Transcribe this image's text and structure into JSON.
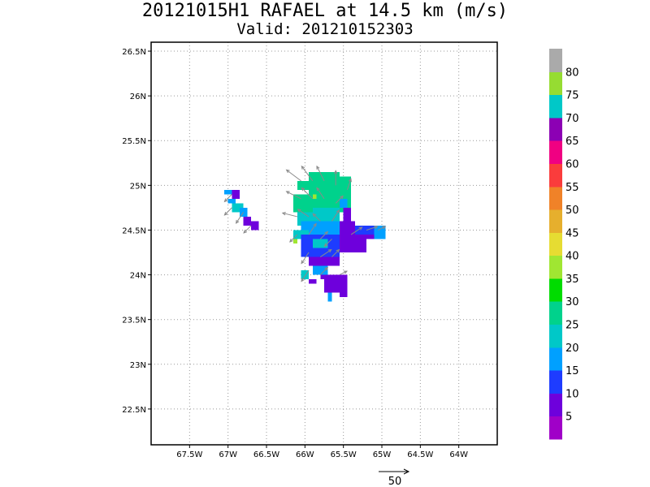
{
  "header": {
    "title": "20121015H1 RAFAEL at 14.5 km (m/s)",
    "subtitle": "Valid: 201210152303"
  },
  "chart_data": {
    "type": "heatmap",
    "title": "20121015H1 RAFAEL at 14.5 km (m/s)",
    "subtitle": "Valid: 201210152303",
    "xlabel": "",
    "ylabel": "",
    "xlim": [
      -68.0,
      -63.5
    ],
    "ylim": [
      22.1,
      26.6
    ],
    "xticks": [
      {
        "value": -67.5,
        "label": "67.5W"
      },
      {
        "value": -67.0,
        "label": "67W"
      },
      {
        "value": -66.5,
        "label": "66.5W"
      },
      {
        "value": -66.0,
        "label": "66W"
      },
      {
        "value": -65.5,
        "label": "65.5W"
      },
      {
        "value": -65.0,
        "label": "65W"
      },
      {
        "value": -64.5,
        "label": "64.5W"
      },
      {
        "value": -64.0,
        "label": "64W"
      }
    ],
    "yticks": [
      {
        "value": 22.5,
        "label": "22.5N"
      },
      {
        "value": 23.0,
        "label": "23N"
      },
      {
        "value": 23.5,
        "label": "23.5N"
      },
      {
        "value": 24.0,
        "label": "24N"
      },
      {
        "value": 24.5,
        "label": "24.5N"
      },
      {
        "value": 25.0,
        "label": "25N"
      },
      {
        "value": 25.5,
        "label": "25.5N"
      },
      {
        "value": 26.0,
        "label": "26N"
      },
      {
        "value": 26.5,
        "label": "26.5N"
      }
    ],
    "grid": true,
    "colorbar": {
      "labels": [
        "5",
        "10",
        "15",
        "20",
        "25",
        "30",
        "35",
        "40",
        "45",
        "50",
        "55",
        "60",
        "65",
        "70",
        "75",
        "80"
      ],
      "colors": [
        "#a000c8",
        "#6e00dc",
        "#1e3cff",
        "#00a0ff",
        "#00c8c8",
        "#00d28c",
        "#00dc00",
        "#a0e632",
        "#e6dc32",
        "#e6af2d",
        "#f08228",
        "#fa3c3c",
        "#f00082",
        "#8c00b4",
        "#00c8c8",
        "#96dc32",
        "#aaaaaa"
      ]
    },
    "cell_size_deg": [
      0.05,
      0.05
    ],
    "cells": [
      {
        "lon": -67.05,
        "lat": 24.9,
        "lon2": -66.9,
        "lat2": 24.95,
        "v": 15
      },
      {
        "lon": -66.95,
        "lat": 24.85,
        "lon2": -66.85,
        "lat2": 24.95,
        "v": 5
      },
      {
        "lon": -67.0,
        "lat": 24.8,
        "lon2": -66.9,
        "lat2": 24.85,
        "v": 15
      },
      {
        "lon": -66.95,
        "lat": 24.7,
        "lon2": -66.8,
        "lat2": 24.8,
        "v": 20
      },
      {
        "lon": -66.85,
        "lat": 24.65,
        "lon2": -66.75,
        "lat2": 24.75,
        "v": 15
      },
      {
        "lon": -66.8,
        "lat": 24.55,
        "lon2": -66.7,
        "lat2": 24.65,
        "v": 5
      },
      {
        "lon": -66.7,
        "lat": 24.5,
        "lon2": -66.6,
        "lat2": 24.6,
        "v": 5
      },
      {
        "lon": -66.1,
        "lat": 24.95,
        "lon2": -65.6,
        "lat2": 25.05,
        "v": 25
      },
      {
        "lon": -65.95,
        "lat": 25.05,
        "lon2": -65.55,
        "lat2": 25.15,
        "v": 25
      },
      {
        "lon": -65.95,
        "lat": 24.7,
        "lon2": -65.4,
        "lat2": 24.95,
        "v": 25
      },
      {
        "lon": -65.6,
        "lat": 24.95,
        "lon2": -65.4,
        "lat2": 25.1,
        "v": 25
      },
      {
        "lon": -66.15,
        "lat": 24.7,
        "lon2": -65.95,
        "lat2": 24.9,
        "v": 25
      },
      {
        "lon": -65.9,
        "lat": 24.85,
        "lon2": -65.85,
        "lat2": 24.9,
        "v": 35
      },
      {
        "lon": -65.9,
        "lat": 24.6,
        "lon2": -65.55,
        "lat2": 24.75,
        "v": 20
      },
      {
        "lon": -66.1,
        "lat": 24.55,
        "lon2": -65.9,
        "lat2": 24.7,
        "v": 20
      },
      {
        "lon": -65.55,
        "lat": 24.75,
        "lon2": -65.45,
        "lat2": 24.85,
        "v": 15
      },
      {
        "lon": -66.05,
        "lat": 24.45,
        "lon2": -65.5,
        "lat2": 24.6,
        "v": 15
      },
      {
        "lon": -66.15,
        "lat": 24.4,
        "lon2": -65.95,
        "lat2": 24.5,
        "v": 20
      },
      {
        "lon": -66.15,
        "lat": 24.35,
        "lon2": -66.1,
        "lat2": 24.4,
        "v": 35
      },
      {
        "lon": -66.05,
        "lat": 24.2,
        "lon2": -65.55,
        "lat2": 24.45,
        "v": 10
      },
      {
        "lon": -65.9,
        "lat": 24.3,
        "lon2": -65.7,
        "lat2": 24.4,
        "v": 20
      },
      {
        "lon": -65.95,
        "lat": 24.1,
        "lon2": -65.55,
        "lat2": 24.2,
        "v": 5
      },
      {
        "lon": -65.9,
        "lat": 24.0,
        "lon2": -65.7,
        "lat2": 24.1,
        "v": 15
      },
      {
        "lon": -66.05,
        "lat": 23.95,
        "lon2": -65.95,
        "lat2": 24.05,
        "v": 20
      },
      {
        "lon": -65.95,
        "lat": 23.9,
        "lon2": -65.85,
        "lat2": 23.95,
        "v": 5
      },
      {
        "lon": -65.55,
        "lat": 24.25,
        "lon2": -65.35,
        "lat2": 24.6,
        "v": 5
      },
      {
        "lon": -65.35,
        "lat": 24.25,
        "lon2": -65.2,
        "lat2": 24.45,
        "v": 5
      },
      {
        "lon": -65.35,
        "lat": 24.45,
        "lon2": -65.0,
        "lat2": 24.55,
        "v": 10
      },
      {
        "lon": -65.2,
        "lat": 24.4,
        "lon2": -65.05,
        "lat2": 24.45,
        "v": 5
      },
      {
        "lon": -65.1,
        "lat": 24.4,
        "lon2": -64.95,
        "lat2": 24.55,
        "v": 15
      },
      {
        "lon": -65.5,
        "lat": 24.6,
        "lon2": -65.4,
        "lat2": 24.75,
        "v": 5
      },
      {
        "lon": -65.8,
        "lat": 23.95,
        "lon2": -65.45,
        "lat2": 24.0,
        "v": 5
      },
      {
        "lon": -65.75,
        "lat": 23.8,
        "lon2": -65.6,
        "lat2": 23.95,
        "v": 5
      },
      {
        "lon": -65.6,
        "lat": 23.8,
        "lon2": -65.45,
        "lat2": 23.95,
        "v": 5
      },
      {
        "lon": -65.55,
        "lat": 23.75,
        "lon2": -65.45,
        "lat2": 23.8,
        "v": 5
      },
      {
        "lon": -65.7,
        "lat": 23.7,
        "lon2": -65.65,
        "lat2": 23.8,
        "v": 15
      }
    ],
    "vectors": [
      {
        "lon": -66.05,
        "lat": 25.05,
        "u": -20,
        "v": 15
      },
      {
        "lon": -65.9,
        "lat": 25.05,
        "u": -15,
        "v": 20
      },
      {
        "lon": -65.75,
        "lat": 25.05,
        "u": -10,
        "v": 20
      },
      {
        "lon": -65.6,
        "lat": 25.0,
        "u": 0,
        "v": 20
      },
      {
        "lon": -65.45,
        "lat": 24.95,
        "u": 5,
        "v": 15
      },
      {
        "lon": -66.05,
        "lat": 24.85,
        "u": -20,
        "v": 10
      },
      {
        "lon": -65.9,
        "lat": 24.85,
        "u": -15,
        "v": 15
      },
      {
        "lon": -65.75,
        "lat": 24.85,
        "u": -10,
        "v": 15
      },
      {
        "lon": -65.6,
        "lat": 24.8,
        "u": 10,
        "v": 10
      },
      {
        "lon": -66.1,
        "lat": 24.65,
        "u": -20,
        "v": 5
      },
      {
        "lon": -65.95,
        "lat": 24.65,
        "u": -15,
        "v": 10
      },
      {
        "lon": -65.8,
        "lat": 24.6,
        "u": -10,
        "v": 10
      },
      {
        "lon": -65.65,
        "lat": 24.6,
        "u": 10,
        "v": 15
      },
      {
        "lon": -66.1,
        "lat": 24.45,
        "u": -10,
        "v": -10
      },
      {
        "lon": -65.95,
        "lat": 24.45,
        "u": 10,
        "v": 15
      },
      {
        "lon": -65.8,
        "lat": 24.4,
        "u": 10,
        "v": 10
      },
      {
        "lon": -65.65,
        "lat": 24.4,
        "u": -10,
        "v": -10
      },
      {
        "lon": -65.4,
        "lat": 24.45,
        "u": 15,
        "v": 10
      },
      {
        "lon": -65.2,
        "lat": 24.5,
        "u": 15,
        "v": 5
      },
      {
        "lon": -65.05,
        "lat": 24.5,
        "u": 10,
        "v": 5
      },
      {
        "lon": -65.95,
        "lat": 24.25,
        "u": -10,
        "v": -15
      },
      {
        "lon": -65.8,
        "lat": 24.2,
        "u": 15,
        "v": 10
      },
      {
        "lon": -65.65,
        "lat": 24.2,
        "u": 10,
        "v": 10
      },
      {
        "lon": -65.95,
        "lat": 24.05,
        "u": -10,
        "v": -15
      },
      {
        "lon": -65.8,
        "lat": 24.0,
        "u": 10,
        "v": 10
      },
      {
        "lon": -65.55,
        "lat": 24.0,
        "u": 10,
        "v": 5
      },
      {
        "lon": -66.95,
        "lat": 24.9,
        "u": -10,
        "v": -10
      },
      {
        "lon": -66.95,
        "lat": 24.75,
        "u": -10,
        "v": -10
      },
      {
        "lon": -66.8,
        "lat": 24.7,
        "u": -10,
        "v": -15
      },
      {
        "lon": -66.7,
        "lat": 24.55,
        "u": -10,
        "v": -10
      }
    ],
    "reference_vector": {
      "value": 50,
      "label": "50"
    }
  }
}
